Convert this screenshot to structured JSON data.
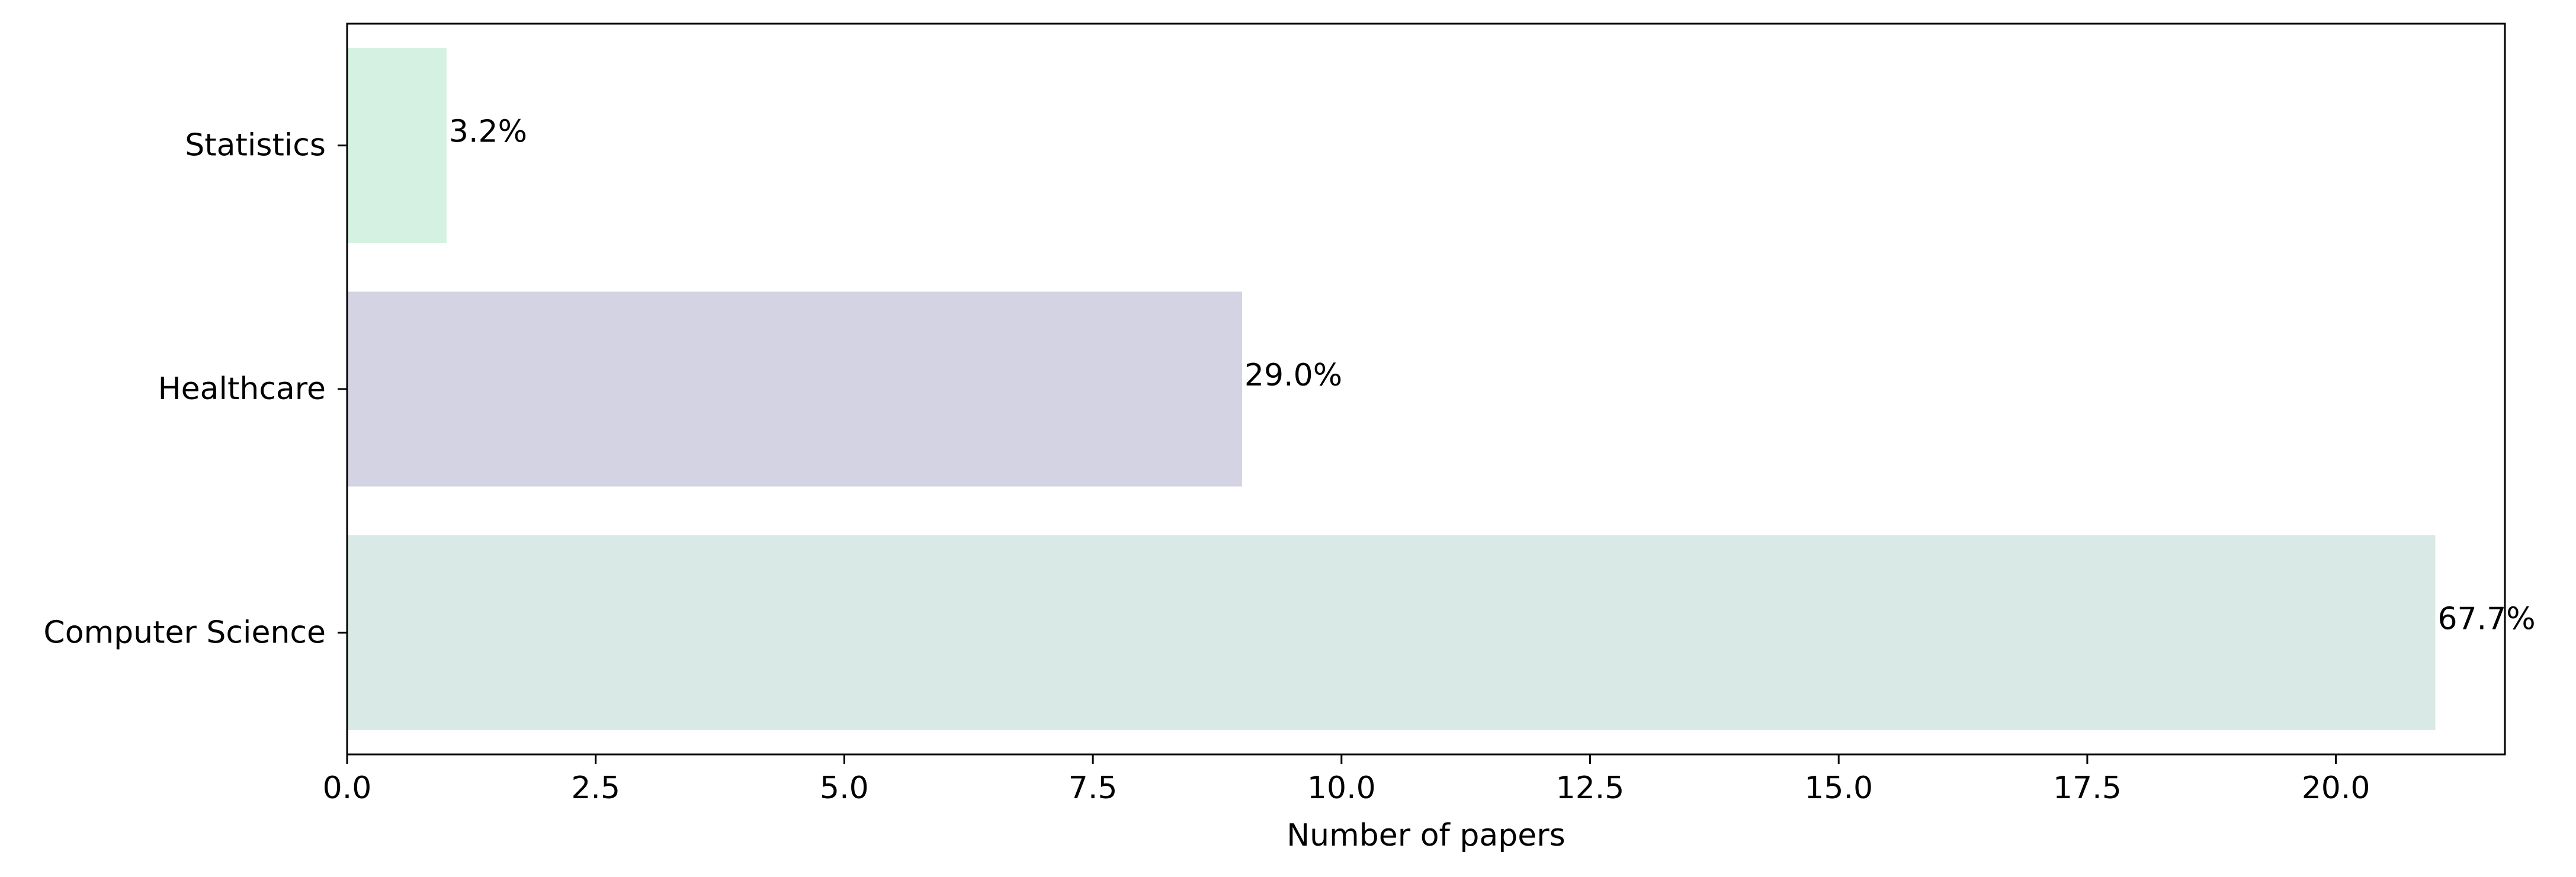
{
  "chart_data": {
    "type": "bar",
    "orientation": "horizontal",
    "title": "",
    "xlabel": "Number of papers",
    "ylabel": "",
    "xlim": [
      0,
      21.7
    ],
    "xticks": [
      "0.0",
      "2.5",
      "5.0",
      "7.5",
      "10.0",
      "12.5",
      "15.0",
      "17.5",
      "20.0"
    ],
    "grid": false,
    "legend": "none",
    "categories": [
      "Computer Science",
      "Healthcare",
      "Statistics"
    ],
    "values": [
      21,
      9,
      1
    ],
    "bar_labels": [
      "67.7%",
      "29.0%",
      "3.2%"
    ],
    "colors": [
      "#d9e9e6",
      "#d4d3e4",
      "#d4f1e1"
    ]
  }
}
